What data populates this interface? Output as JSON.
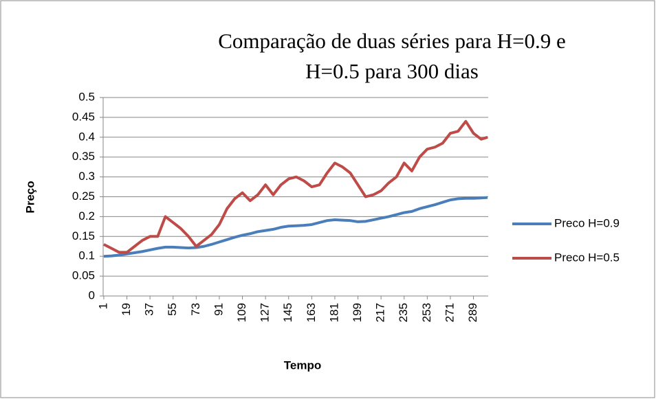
{
  "chart_data": {
    "type": "line",
    "title": "Comparação de duas séries para H=0.9 e H=0.5 para 300 dias",
    "x_label": "Tempo",
    "y_label": "Preço",
    "x": [
      1,
      7,
      13,
      19,
      25,
      31,
      37,
      43,
      49,
      55,
      61,
      67,
      73,
      79,
      85,
      91,
      97,
      103,
      109,
      115,
      121,
      127,
      133,
      139,
      145,
      151,
      157,
      163,
      169,
      175,
      181,
      187,
      193,
      199,
      205,
      211,
      217,
      223,
      229,
      235,
      241,
      247,
      253,
      259,
      265,
      271,
      277,
      283,
      289,
      295,
      300
    ],
    "series": [
      {
        "name": "Preco H=0.9",
        "color": "#4a7ebb",
        "values": [
          0.1,
          0.101,
          0.103,
          0.106,
          0.109,
          0.112,
          0.116,
          0.12,
          0.123,
          0.123,
          0.122,
          0.121,
          0.122,
          0.125,
          0.13,
          0.136,
          0.142,
          0.148,
          0.153,
          0.157,
          0.162,
          0.165,
          0.168,
          0.173,
          0.176,
          0.177,
          0.178,
          0.18,
          0.185,
          0.19,
          0.192,
          0.191,
          0.19,
          0.187,
          0.188,
          0.192,
          0.196,
          0.2,
          0.205,
          0.21,
          0.213,
          0.22,
          0.225,
          0.23,
          0.236,
          0.242,
          0.245,
          0.246,
          0.246,
          0.247,
          0.248
        ]
      },
      {
        "name": "Preco H=0.5",
        "color": "#be4b48",
        "values": [
          0.13,
          0.12,
          0.11,
          0.11,
          0.125,
          0.14,
          0.15,
          0.15,
          0.2,
          0.185,
          0.17,
          0.15,
          0.125,
          0.14,
          0.155,
          0.18,
          0.22,
          0.245,
          0.26,
          0.24,
          0.255,
          0.28,
          0.255,
          0.28,
          0.295,
          0.3,
          0.29,
          0.275,
          0.28,
          0.31,
          0.335,
          0.325,
          0.31,
          0.28,
          0.25,
          0.255,
          0.265,
          0.285,
          0.3,
          0.335,
          0.315,
          0.35,
          0.37,
          0.375,
          0.385,
          0.41,
          0.415,
          0.44,
          0.41,
          0.395,
          0.4
        ]
      }
    ],
    "xlim": [
      0.5,
      300.5
    ],
    "xticks": [
      1,
      19,
      37,
      55,
      73,
      91,
      109,
      127,
      145,
      163,
      181,
      199,
      217,
      235,
      253,
      271,
      289
    ],
    "ylim": [
      0,
      0.5
    ],
    "yticks": [
      0,
      0.05,
      0.1,
      0.15,
      0.2,
      0.25,
      0.3,
      0.35,
      0.4,
      0.45,
      0.5
    ],
    "grid": true,
    "legend": "right"
  }
}
